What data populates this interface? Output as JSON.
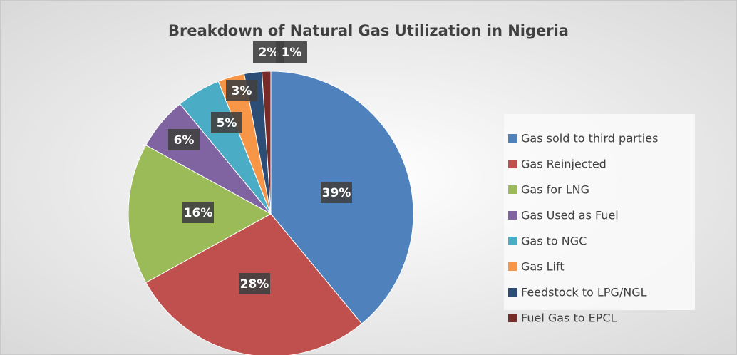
{
  "chart_data": {
    "type": "pie",
    "title": "Breakdown of Natural Gas Utilization in Nigeria",
    "categories": [
      "Gas sold to third parties",
      "Gas Reinjected",
      "Gas for LNG",
      "Gas Used as Fuel",
      "Gas to NGC",
      "Gas Lift",
      "Feedstock to LPG/NGL",
      "Fuel Gas to EPCL"
    ],
    "values": [
      39,
      28,
      16,
      6,
      5,
      3,
      2,
      1
    ],
    "value_labels": [
      "39%",
      "28%",
      "16%",
      "6%",
      "5%",
      "3%",
      "2%",
      "1%"
    ],
    "colors": [
      "#4f81bd",
      "#c0504d",
      "#9bbb59",
      "#8064a2",
      "#4bacc6",
      "#f79646",
      "#2c4d75",
      "#772c2a"
    ],
    "legend": "right"
  }
}
